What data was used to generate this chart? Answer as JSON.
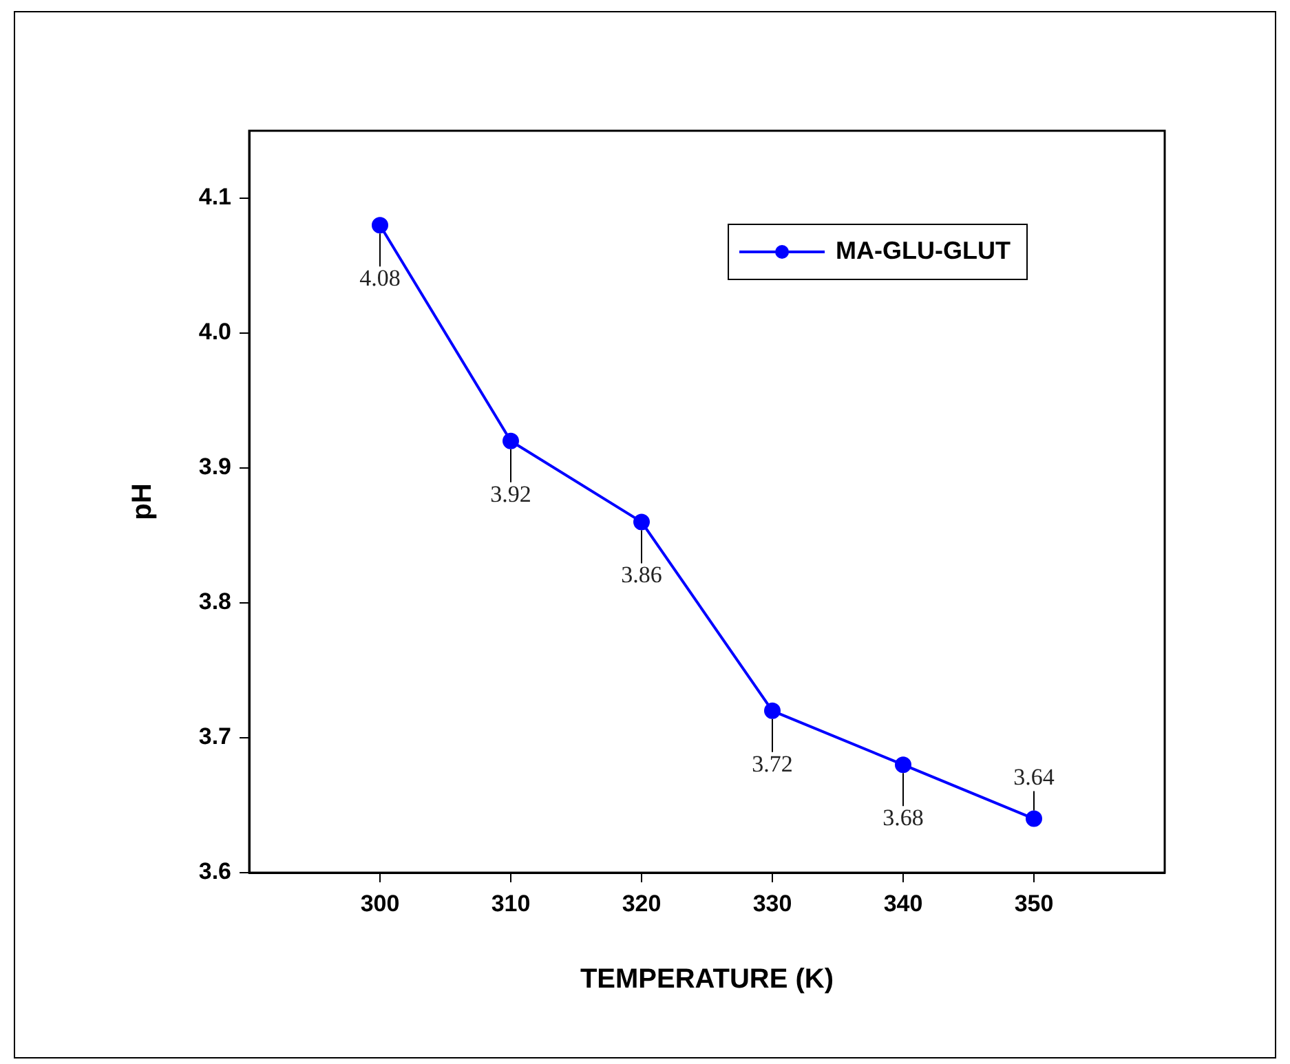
{
  "chart_data": {
    "type": "line",
    "xlabel": "TEMPERATURE (K)",
    "ylabel": "pH",
    "x": [
      300,
      310,
      320,
      330,
      340,
      350
    ],
    "series": [
      {
        "name": "MA-GLU-GLUT",
        "color": "#0000ff",
        "values": [
          4.08,
          3.92,
          3.86,
          3.72,
          3.68,
          3.64
        ]
      }
    ],
    "xlim": [
      290,
      360
    ],
    "xticks": [
      300,
      310,
      320,
      330,
      340,
      350
    ],
    "ylim": [
      3.6,
      4.15
    ],
    "yticks": [
      3.6,
      3.7,
      3.8,
      3.9,
      {
        "value": 4,
        "label": "4.0"
      },
      4.1
    ],
    "data_labels": true,
    "legend": "top right",
    "marker": "circle",
    "line_style": "solid",
    "grid": false
  }
}
